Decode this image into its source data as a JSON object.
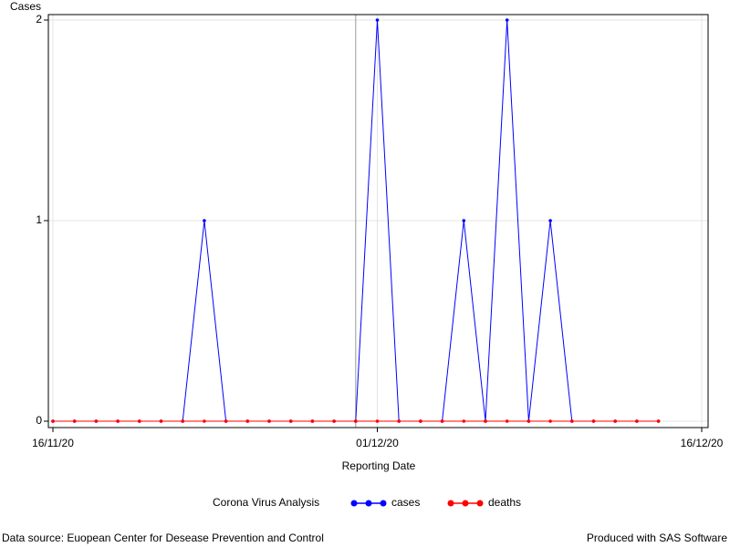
{
  "chart_data": {
    "type": "line",
    "y_label": "Cases",
    "x_label": "Reporting Date",
    "legend_title": "Corona Virus Analysis",
    "footnote_left": "Data source: Euopean Center for Desease Prevention and Control",
    "footnote_right": "Produced with SAS Software",
    "x": [
      "16/11/20",
      "17/11/20",
      "18/11/20",
      "19/11/20",
      "20/11/20",
      "21/11/20",
      "22/11/20",
      "23/11/20",
      "24/11/20",
      "25/11/20",
      "26/11/20",
      "27/11/20",
      "28/11/20",
      "29/11/20",
      "30/11/20",
      "01/12/20",
      "02/12/20",
      "03/12/20",
      "04/12/20",
      "05/12/20",
      "06/12/20",
      "07/12/20",
      "08/12/20",
      "09/12/20",
      "10/12/20",
      "11/12/20",
      "12/12/20",
      "13/12/20",
      "14/12/20"
    ],
    "series": [
      {
        "name": "cases",
        "color": "#0000ff",
        "values": [
          0,
          0,
          0,
          0,
          0,
          0,
          0,
          1,
          0,
          0,
          0,
          0,
          0,
          0,
          0,
          2,
          0,
          0,
          0,
          1,
          0,
          2,
          0,
          1,
          0,
          0,
          0,
          0,
          0
        ]
      },
      {
        "name": "deaths",
        "color": "#ff0000",
        "values": [
          0,
          0,
          0,
          0,
          0,
          0,
          0,
          0,
          0,
          0,
          0,
          0,
          0,
          0,
          0,
          0,
          0,
          0,
          0,
          0,
          0,
          0,
          0,
          0,
          0,
          0,
          0,
          0,
          0
        ]
      }
    ],
    "xlim": [
      "16/11/20",
      "16/12/20"
    ],
    "xticks": [
      "16/11/20",
      "01/12/20",
      "16/12/20"
    ],
    "ylim": [
      0,
      2
    ],
    "yticks": [
      0,
      1,
      2
    ],
    "reference_line": "30/11/20",
    "grid": true
  }
}
